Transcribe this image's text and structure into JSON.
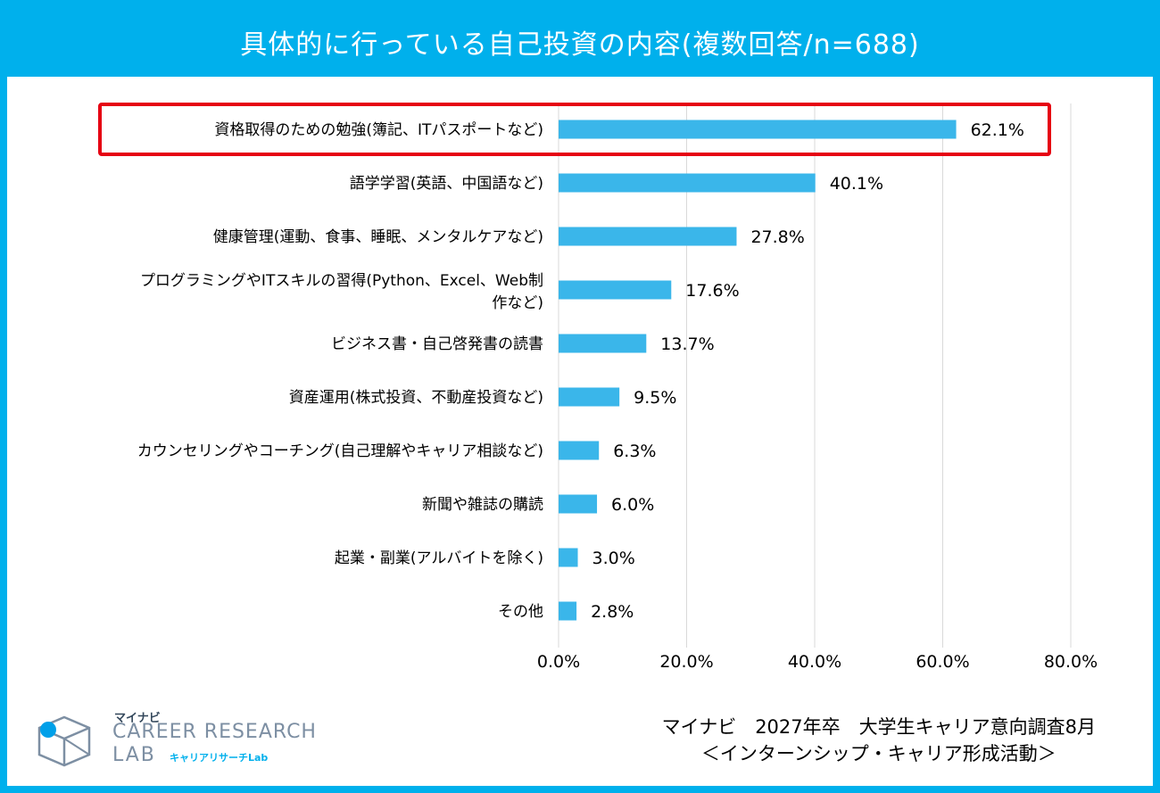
{
  "title": "具体的に行っている自己投資の内容(複数回答/n=688)",
  "colors": {
    "frame": "#00b0ec",
    "bar": "#3ab6ea",
    "highlight": "#e60012",
    "grid": "#d9d9d9"
  },
  "chart_data": {
    "type": "bar",
    "orientation": "horizontal",
    "categories": [
      "資格取得のための勉強(簿記、ITパスポートなど)",
      "語学学習(英語、中国語など)",
      "健康管理(運動、食事、睡眠、メンタルケアなど)",
      "プログラミングやITスキルの習得(Python、Excel、Web制作など)",
      "ビジネス書・自己啓発書の読書",
      "資産運用(株式投資、不動産投資など)",
      "カウンセリングやコーチング(自己理解やキャリア相談など)",
      "新聞や雑誌の購読",
      "起業・副業(アルバイトを除く)",
      "その他"
    ],
    "values": [
      62.1,
      40.1,
      27.8,
      17.6,
      13.7,
      9.5,
      6.3,
      6.0,
      3.0,
      2.8
    ],
    "value_labels": [
      "62.1%",
      "40.1%",
      "27.8%",
      "17.6%",
      "13.7%",
      "9.5%",
      "6.3%",
      "6.0%",
      "3.0%",
      "2.8%"
    ],
    "category_lines": [
      [
        "資格取得のための勉強(簿記、ITパスポートなど)"
      ],
      [
        "語学学習(英語、中国語など)"
      ],
      [
        "健康管理(運動、食事、睡眠、メンタルケアなど)"
      ],
      [
        "プログラミングやITスキルの習得(Python、Excel、Web制",
        "作など)"
      ],
      [
        "ビジネス書・自己啓発書の読書"
      ],
      [
        "資産運用(株式投資、不動産投資など)"
      ],
      [
        "カウンセリングやコーチング(自己理解やキャリア相談など)"
      ],
      [
        "新聞や雑誌の購読"
      ],
      [
        "起業・副業(アルバイトを除く)"
      ],
      [
        "その他"
      ]
    ],
    "xlim": [
      0,
      80
    ],
    "xticks": [
      0,
      20,
      40,
      60,
      80
    ],
    "xtick_labels": [
      "0.0%",
      "20.0%",
      "40.0%",
      "60.0%",
      "80.0%"
    ],
    "grid": true,
    "highlighted_index": 0
  },
  "logo": {
    "small": "マイナビ",
    "main": "CAREER RESEARCH",
    "lab": "LAB",
    "sub": "キャリアリサーチLab"
  },
  "source": {
    "line1": "マイナビ　2027年卒　大学生キャリア意向調査8月",
    "line2": "＜インターンシップ・キャリア形成活動＞"
  }
}
